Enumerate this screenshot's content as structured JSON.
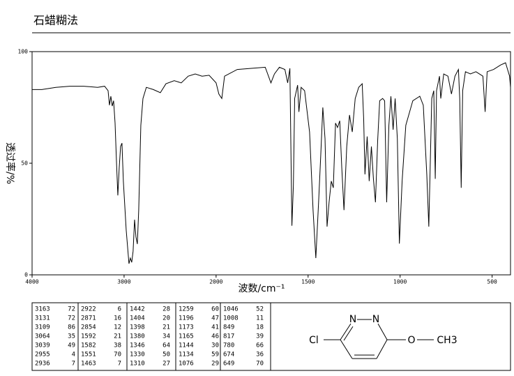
{
  "chart_data": {
    "type": "line",
    "title": "石蜡糊法",
    "x_label": "波数/cm⁻¹",
    "y_label": "透过率/%",
    "xlim": [
      4000,
      400
    ],
    "xticks": [
      4000,
      3000,
      2000,
      1500,
      1000,
      500
    ],
    "x_scale_break": 2000,
    "ylim": [
      0,
      100
    ],
    "yticks": [
      0,
      50,
      100
    ],
    "color": "#000000",
    "x": [
      4000,
      3894,
      3742,
      3591,
      3439,
      3288,
      3212,
      3174,
      3159,
      3144,
      3129,
      3114,
      3098,
      3083,
      3068,
      3053,
      3038,
      3023,
      3008,
      2977,
      2947,
      2932,
      2917,
      2902,
      2886,
      2871,
      2856,
      2841,
      2818,
      2795,
      2758,
      2682,
      2606,
      2545,
      2455,
      2379,
      2303,
      2227,
      2152,
      2076,
      2000,
      1985,
      1969,
      1954,
      1885,
      1809,
      1733,
      1702,
      1683,
      1656,
      1626,
      1611,
      1599,
      1588,
      1580,
      1573,
      1557,
      1550,
      1538,
      1519,
      1492,
      1473,
      1458,
      1443,
      1431,
      1420,
      1408,
      1397,
      1386,
      1374,
      1363,
      1351,
      1340,
      1328,
      1317,
      1305,
      1290,
      1275,
      1260,
      1244,
      1225,
      1206,
      1198,
      1191,
      1179,
      1168,
      1156,
      1145,
      1134,
      1122,
      1111,
      1095,
      1084,
      1073,
      1061,
      1050,
      1038,
      1027,
      1015,
      1004,
      989,
      969,
      931,
      893,
      874,
      855,
      844,
      828,
      817,
      809,
      802,
      786,
      779,
      763,
      740,
      721,
      702,
      683,
      676,
      668,
      660,
      645,
      618,
      588,
      550,
      538,
      527,
      492,
      454,
      427,
      405,
      400
    ],
    "values": [
      83,
      83,
      84,
      84.5,
      84.5,
      84,
      84.5,
      82.5,
      76,
      80,
      75.6,
      78,
      68,
      51,
      35.6,
      48,
      57.5,
      59,
      42,
      20,
      5,
      7.5,
      5.6,
      10.6,
      24.7,
      17,
      13.8,
      29,
      67,
      79,
      84,
      83,
      81.6,
      85.6,
      87,
      86,
      89,
      90,
      89,
      89.4,
      86,
      81,
      79,
      89,
      92,
      92.5,
      93,
      86,
      90,
      93,
      92,
      86,
      92.5,
      22,
      40,
      79,
      85,
      73,
      84,
      82.5,
      64,
      29,
      7.5,
      32.5,
      54,
      75,
      61,
      21.6,
      32.5,
      42,
      39,
      68,
      66,
      69,
      48,
      29,
      57.5,
      71.6,
      64,
      79,
      84,
      85.6,
      70,
      45,
      62,
      42,
      57.5,
      43,
      32.5,
      60,
      78,
      79,
      78,
      32.5,
      67,
      80,
      65,
      79,
      61,
      14,
      42,
      67,
      78,
      80,
      76,
      45,
      21.6,
      79,
      82.5,
      43,
      82.5,
      89,
      79,
      90,
      89,
      81,
      89,
      92,
      79,
      39,
      82.5,
      91,
      90,
      91,
      89,
      73,
      91,
      92,
      94,
      95,
      89,
      84
    ]
  },
  "peak_table": [
    [
      [
        3163,
        72
      ],
      [
        3131,
        72
      ],
      [
        3109,
        86
      ],
      [
        3064,
        35
      ],
      [
        3039,
        49
      ],
      [
        2955,
        4
      ],
      [
        2936,
        7
      ]
    ],
    [
      [
        2922,
        6
      ],
      [
        2871,
        16
      ],
      [
        2854,
        12
      ],
      [
        1592,
        21
      ],
      [
        1582,
        38
      ],
      [
        1551,
        70
      ],
      [
        1463,
        7
      ]
    ],
    [
      [
        1442,
        28
      ],
      [
        1404,
        20
      ],
      [
        1398,
        21
      ],
      [
        1380,
        34
      ],
      [
        1346,
        64
      ],
      [
        1330,
        50
      ],
      [
        1310,
        27
      ]
    ],
    [
      [
        1259,
        60
      ],
      [
        1196,
        47
      ],
      [
        1173,
        41
      ],
      [
        1165,
        46
      ],
      [
        1144,
        30
      ],
      [
        1134,
        59
      ],
      [
        1076,
        29
      ]
    ],
    [
      [
        1046,
        52
      ],
      [
        1008,
        11
      ],
      [
        849,
        18
      ],
      [
        817,
        39
      ],
      [
        780,
        66
      ],
      [
        674,
        36
      ],
      [
        649,
        70
      ]
    ]
  ],
  "structure": {
    "labels": [
      "Cl",
      "N",
      "N",
      "O",
      "CH3"
    ]
  }
}
